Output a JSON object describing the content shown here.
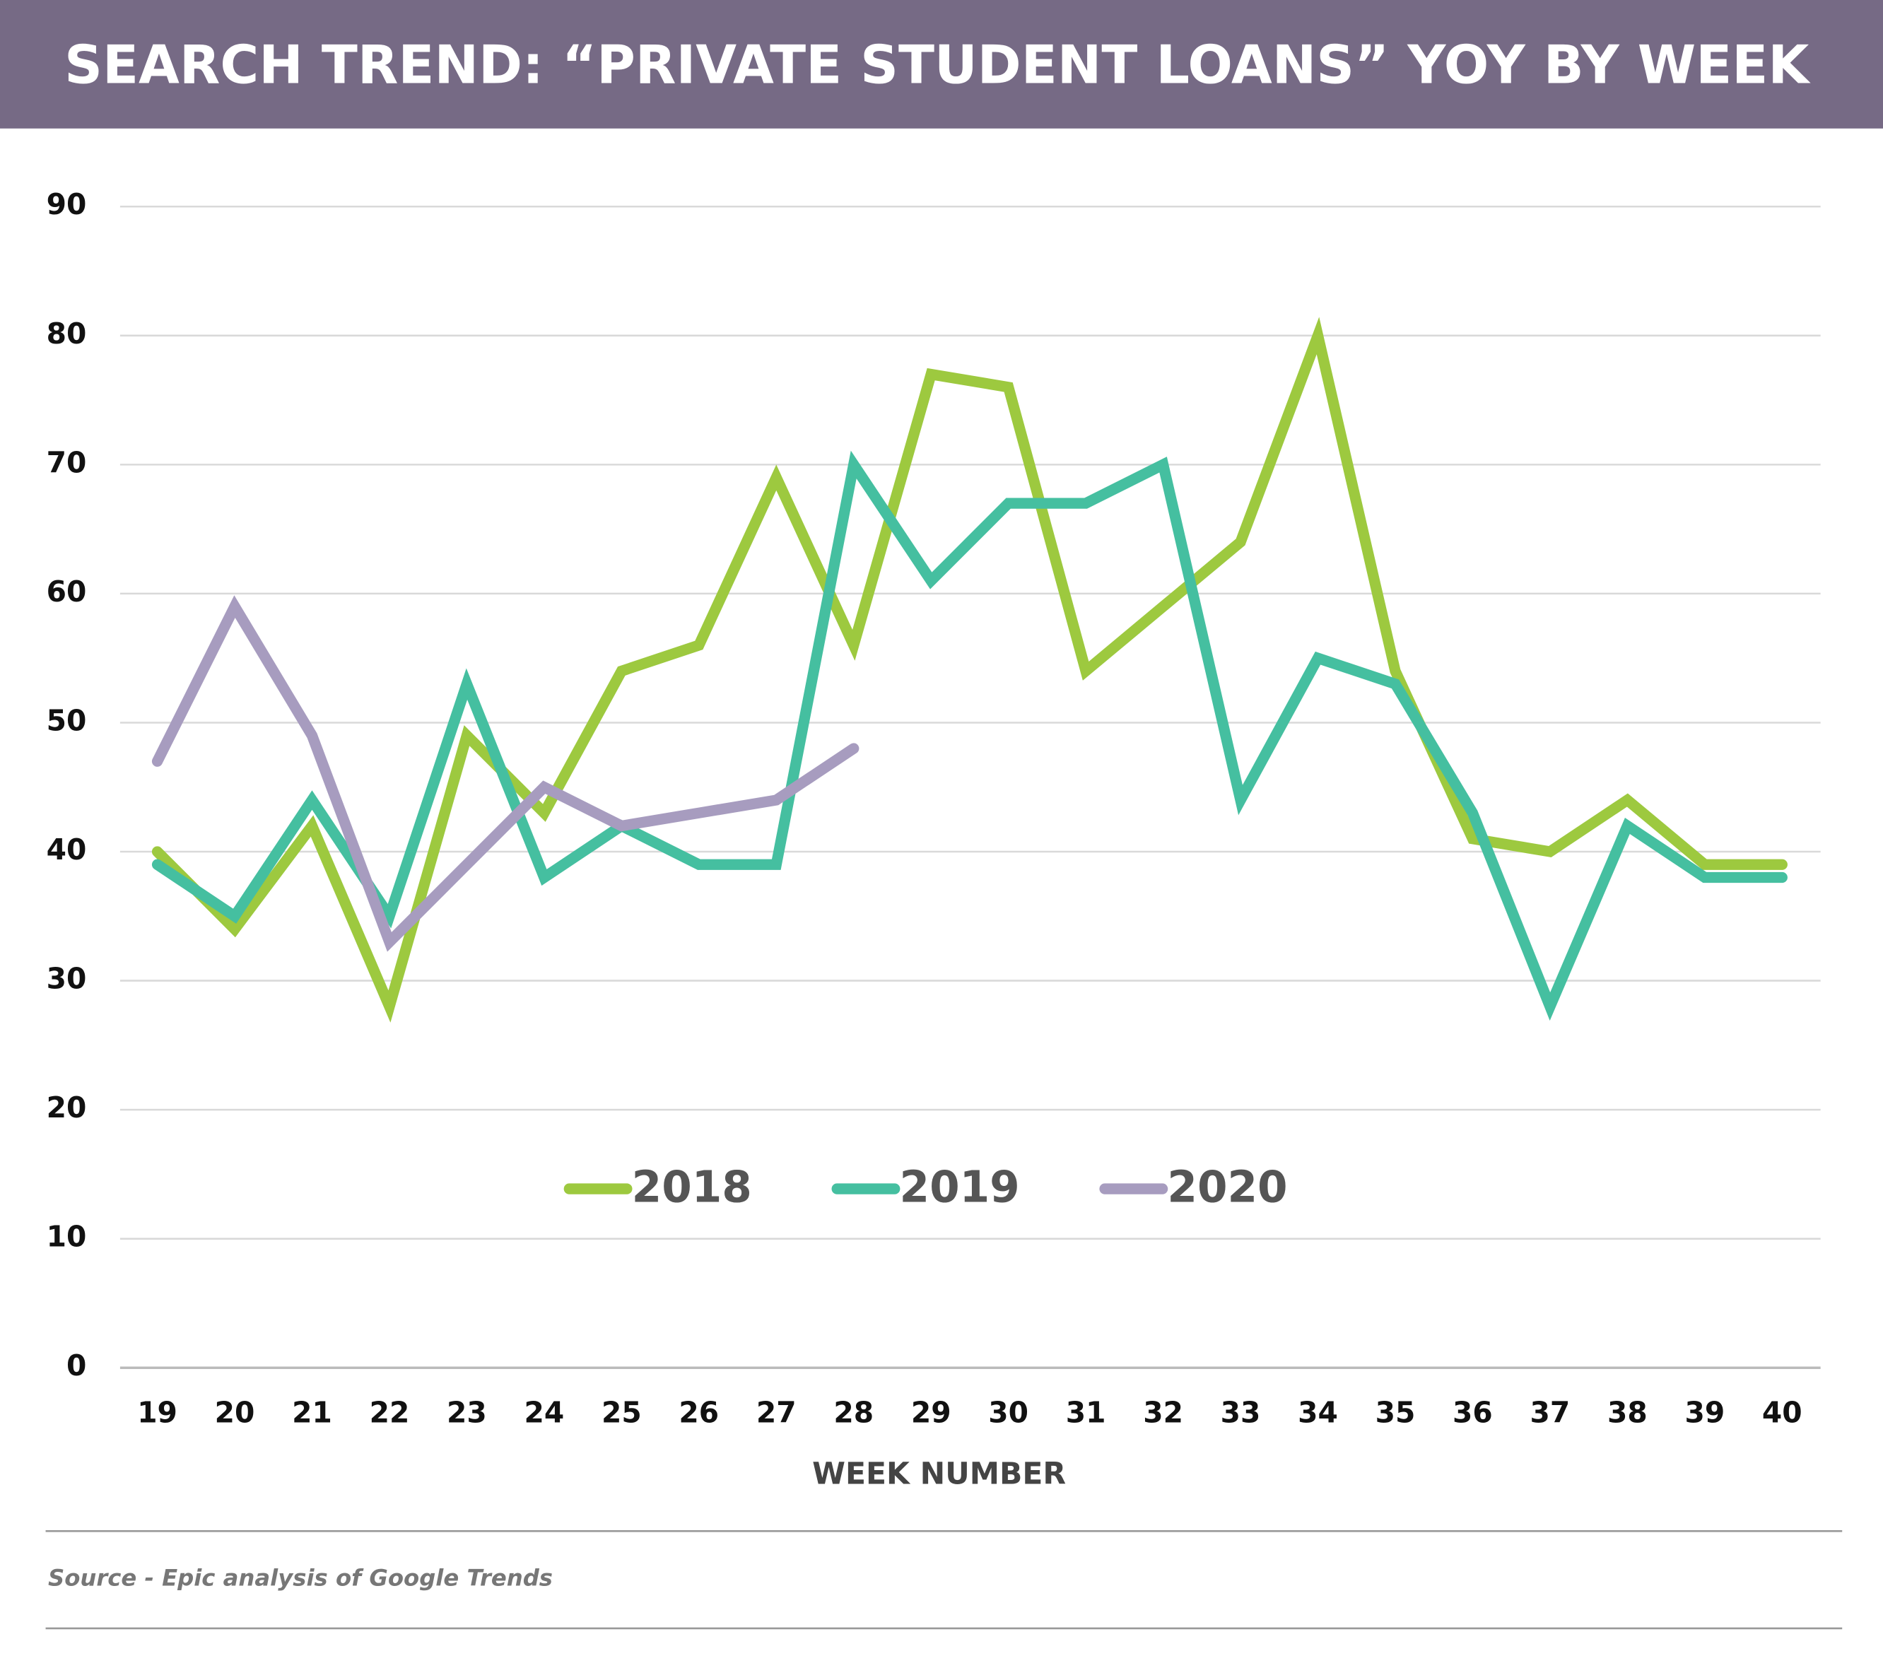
{
  "chart_data": {
    "type": "line",
    "title": "SEARCH TREND: “PRIVATE STUDENT LOANS” YOY BY WEEK",
    "x_label": "WEEK NUMBER",
    "source": "Source - Epic analysis of Google Trends",
    "categories": [
      19,
      20,
      21,
      22,
      23,
      24,
      25,
      26,
      27,
      28,
      29,
      30,
      31,
      32,
      33,
      34,
      35,
      36,
      37,
      38,
      39,
      40
    ],
    "series": [
      {
        "name": "2018",
        "color": "#9dc93f",
        "values": [
          40,
          34,
          42,
          28,
          49,
          43,
          54,
          56,
          69,
          56,
          77,
          76,
          54,
          59,
          64,
          80,
          54,
          41,
          40,
          44,
          39,
          39
        ]
      },
      {
        "name": "2019",
        "color": "#45bfa0",
        "values": [
          39,
          35,
          44,
          35,
          53,
          38,
          42,
          39,
          39,
          70,
          61,
          67,
          67,
          70,
          44,
          55,
          53,
          43,
          28,
          42,
          38,
          38
        ]
      },
      {
        "name": "2020",
        "color": "#a79cbf",
        "values": [
          47,
          59,
          49,
          33,
          39,
          45,
          42,
          43,
          44,
          48,
          null,
          null,
          null,
          null,
          null,
          null,
          null,
          null,
          null,
          null,
          null,
          null
        ]
      }
    ],
    "ylim": [
      0,
      90
    ],
    "yticks": [
      0,
      10,
      20,
      30,
      40,
      50,
      60,
      70,
      80,
      90
    ],
    "grid": true,
    "legend": "center"
  }
}
